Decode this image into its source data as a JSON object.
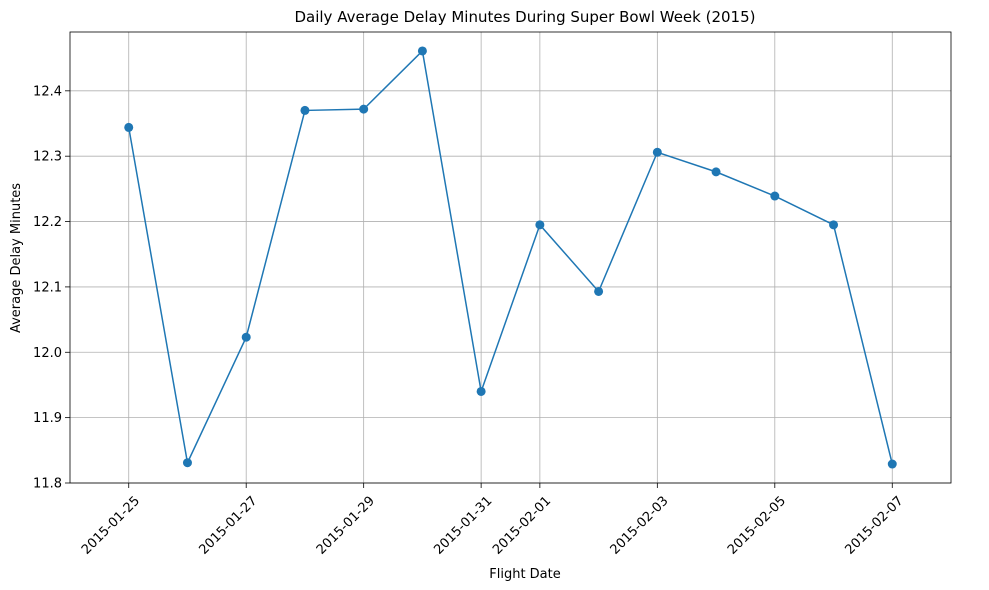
{
  "chart_data": {
    "type": "line",
    "title": "Daily Average Delay Minutes During Super Bowl Week (2015)",
    "xlabel": "Flight Date",
    "ylabel": "Average Delay Minutes",
    "x_ticks": [
      "2015-01-25",
      "2015-01-27",
      "2015-01-29",
      "2015-01-31",
      "2015-02-01",
      "2015-02-03",
      "2015-02-05",
      "2015-02-07"
    ],
    "y_ticks": [
      "11.8",
      "11.9",
      "12.0",
      "12.1",
      "12.2",
      "12.3",
      "12.4"
    ],
    "ylim": [
      11.8,
      12.49
    ],
    "xlim": [
      "2015-01-24",
      "2015-02-08"
    ],
    "grid": true,
    "series": [
      {
        "color": "#1f77b4",
        "x": [
          "2015-01-25",
          "2015-01-26",
          "2015-01-27",
          "2015-01-28",
          "2015-01-29",
          "2015-01-30",
          "2015-01-31",
          "2015-02-01",
          "2015-02-02",
          "2015-02-03",
          "2015-02-04",
          "2015-02-05",
          "2015-02-06",
          "2015-02-07"
        ],
        "values": [
          12.344,
          11.831,
          12.023,
          12.37,
          12.372,
          12.461,
          11.94,
          12.195,
          12.093,
          12.306,
          12.276,
          12.239,
          12.195,
          11.829
        ]
      }
    ]
  }
}
